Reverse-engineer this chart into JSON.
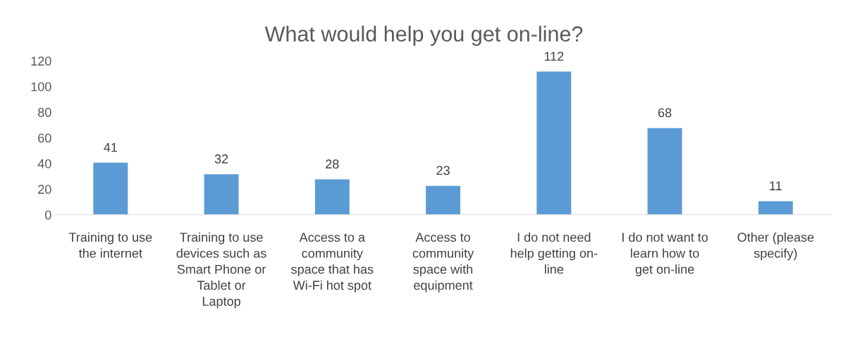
{
  "chart_data": {
    "type": "bar",
    "title": "What would help you get on-line?",
    "categories": [
      "Training to use\nthe internet",
      "Training to use\ndevices such as\nSmart Phone or\nTablet or\nLaptop",
      "Access to a\ncommunity\nspace that has\nWi-Fi hot spot",
      "Access to\ncommunity\nspace with\nequipment",
      "I do not need\nhelp getting on-\nline",
      "I do not want to\nlearn how to\nget on-line",
      "Other (please\nspecify)"
    ],
    "values": [
      41,
      32,
      28,
      23,
      112,
      68,
      11
    ],
    "color": "#5b9bd5",
    "ylim": [
      0,
      120
    ],
    "yticks": [
      0,
      20,
      40,
      60,
      80,
      100,
      120
    ],
    "grid": false,
    "data_labels": true
  }
}
